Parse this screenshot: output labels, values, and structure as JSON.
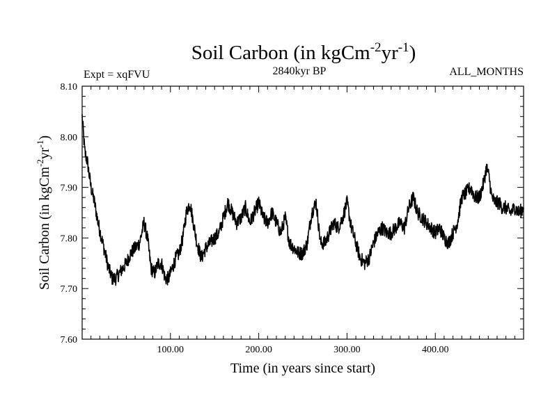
{
  "colors": {
    "background": "#ffffff",
    "line": "#000000",
    "axis": "#000000"
  },
  "header": {
    "title_main": "Soil Carbon (in kgCm",
    "title_sup1": "-2",
    "title_mid": "yr",
    "title_sup2": "-1",
    "title_end": ")",
    "expt_label": "Expt = xqFVU",
    "period_label": "2840kyr BP",
    "months_label": "ALL_MONTHS"
  },
  "chart_data": {
    "type": "line",
    "xlabel": "Time (in years since start)",
    "ylabel_main": "Soil Carbon (in kgCm",
    "ylabel_sup1": "-2",
    "ylabel_mid": "yr",
    "ylabel_sup2": "-1",
    "ylabel_end": ")",
    "xlim": [
      0,
      500
    ],
    "ylim": [
      7.6,
      8.1
    ],
    "x_ticks": [
      100,
      200,
      300,
      400
    ],
    "x_tick_labels": [
      "100.00",
      "200.00",
      "300.00",
      "400.00"
    ],
    "y_ticks": [
      7.6,
      7.7,
      7.8,
      7.9,
      8.0,
      8.1
    ],
    "y_tick_labels": [
      "7.60",
      "7.70",
      "7.80",
      "7.90",
      "8.00",
      "8.10"
    ],
    "series": [
      {
        "name": "Soil Carbon",
        "x": [
          0,
          3,
          6,
          10,
          14,
          18,
          22,
          26,
          30,
          34,
          38,
          42,
          46,
          50,
          55,
          60,
          65,
          70,
          74,
          78,
          82,
          86,
          90,
          94,
          98,
          102,
          106,
          110,
          114,
          118,
          122,
          126,
          130,
          135,
          140,
          145,
          150,
          155,
          160,
          165,
          170,
          175,
          180,
          185,
          190,
          195,
          200,
          205,
          210,
          215,
          220,
          225,
          230,
          235,
          240,
          245,
          250,
          255,
          260,
          265,
          270,
          275,
          280,
          285,
          290,
          295,
          300,
          305,
          310,
          315,
          320,
          325,
          330,
          335,
          340,
          345,
          350,
          355,
          360,
          365,
          370,
          375,
          380,
          385,
          390,
          395,
          400,
          405,
          410,
          415,
          420,
          425,
          430,
          435,
          440,
          445,
          450,
          455,
          458,
          461,
          464,
          468,
          472,
          476,
          480,
          485,
          490,
          495,
          500
        ],
        "y": [
          8.04,
          7.97,
          7.95,
          7.9,
          7.87,
          7.83,
          7.8,
          7.77,
          7.74,
          7.72,
          7.72,
          7.73,
          7.74,
          7.75,
          7.77,
          7.78,
          7.79,
          7.83,
          7.8,
          7.74,
          7.73,
          7.75,
          7.75,
          7.72,
          7.72,
          7.74,
          7.76,
          7.77,
          7.8,
          7.85,
          7.87,
          7.83,
          7.79,
          7.76,
          7.78,
          7.79,
          7.8,
          7.81,
          7.84,
          7.87,
          7.85,
          7.83,
          7.84,
          7.86,
          7.83,
          7.85,
          7.87,
          7.84,
          7.83,
          7.85,
          7.83,
          7.81,
          7.84,
          7.79,
          7.78,
          7.77,
          7.77,
          7.79,
          7.85,
          7.87,
          7.79,
          7.79,
          7.81,
          7.83,
          7.82,
          7.84,
          7.87,
          7.82,
          7.79,
          7.76,
          7.75,
          7.76,
          7.79,
          7.81,
          7.82,
          7.81,
          7.81,
          7.82,
          7.83,
          7.82,
          7.86,
          7.88,
          7.85,
          7.84,
          7.83,
          7.82,
          7.81,
          7.82,
          7.8,
          7.79,
          7.81,
          7.83,
          7.88,
          7.89,
          7.9,
          7.88,
          7.88,
          7.91,
          7.94,
          7.92,
          7.88,
          7.87,
          7.87,
          7.86,
          7.86,
          7.85,
          7.86,
          7.85,
          7.86
        ]
      }
    ]
  }
}
